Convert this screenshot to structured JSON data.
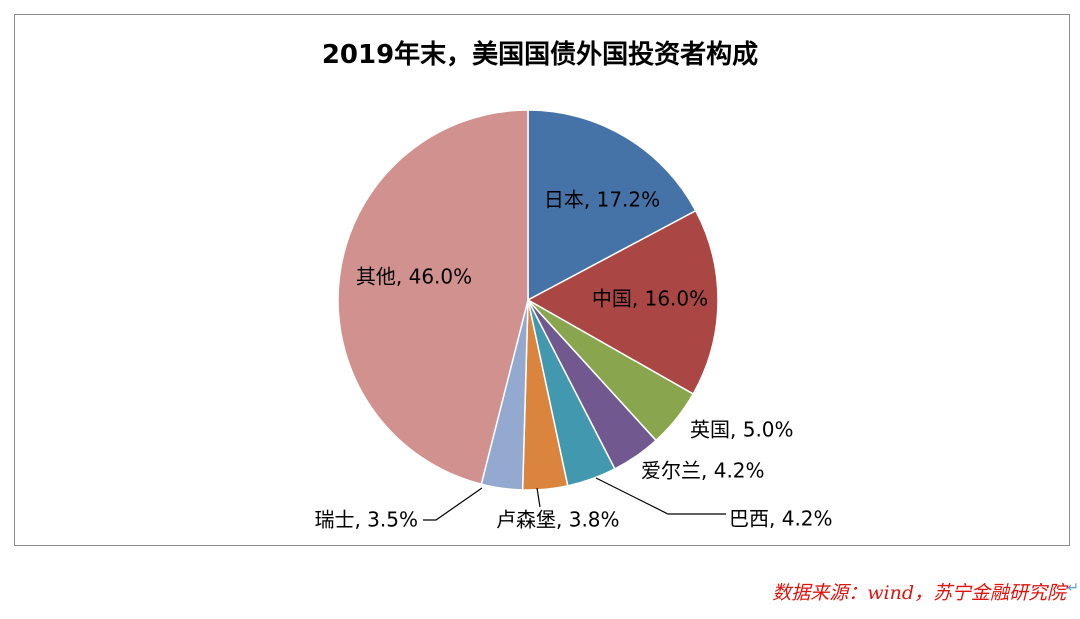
{
  "chart_data": {
    "type": "pie",
    "title": "2019年末，美国国债外国投资者构成",
    "slices": [
      {
        "name": "日本",
        "value": 17.2,
        "label": "日本, 17.2%",
        "color": "#4572a7"
      },
      {
        "name": "中国",
        "value": 16.0,
        "label": "中国, 16.0%",
        "color": "#aa4643"
      },
      {
        "name": "英国",
        "value": 5.0,
        "label": "英国, 5.0%",
        "color": "#89a54e"
      },
      {
        "name": "爱尔兰",
        "value": 4.2,
        "label": "爱尔兰, 4.2%",
        "color": "#71588f"
      },
      {
        "name": "巴西",
        "value": 4.2,
        "label": "巴西, 4.2%",
        "color": "#4198af"
      },
      {
        "name": "卢森堡",
        "value": 3.8,
        "label": "卢森堡, 3.8%",
        "color": "#db843d"
      },
      {
        "name": "瑞士",
        "value": 3.5,
        "label": "瑞士, 3.5%",
        "color": "#93a9cf"
      },
      {
        "name": "其他",
        "value": 46.0,
        "label": "其他, 46.0%",
        "color": "#d1928f"
      }
    ]
  },
  "source_note": "数据来源：wind，苏宁金融研究院"
}
